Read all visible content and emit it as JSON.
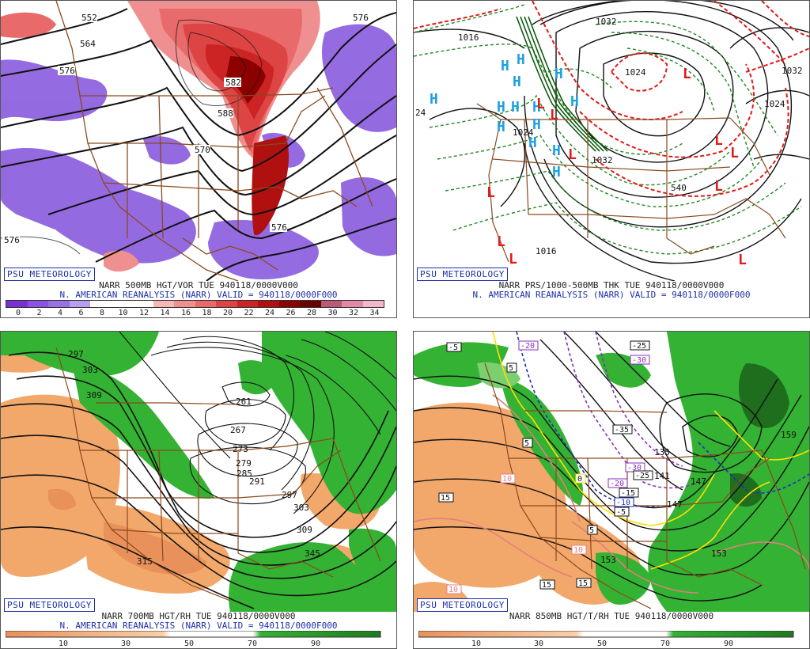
{
  "panels": {
    "tl": {
      "badge": "PSU METEOROLOGY",
      "caption1": "NARR 500MB HGT/VOR TUE 940118/0000V000",
      "caption2": "N. AMERICAN REANALYSIS (NARR) VALID = 940118/0000F000",
      "scale_labels": [
        "0",
        "2",
        "4",
        "6",
        "8",
        "10",
        "12",
        "14",
        "16",
        "18",
        "20",
        "22",
        "24",
        "26",
        "28",
        "30",
        "32",
        "34"
      ],
      "scale_colors": [
        "#7b2fd8",
        "#8a52e2",
        "#9a70e6",
        "#b79ff0",
        "#ffffff",
        "#ffffff",
        "#ffffff",
        "#f7b7b7",
        "#f08f8f",
        "#e86a6a",
        "#dd4545",
        "#cc2424",
        "#b01010",
        "#8c0000",
        "#6b0000",
        "#bb5a77",
        "#e28aa5",
        "#f5b7cb"
      ],
      "contour_labels": [
        "552",
        "564",
        "576",
        "576",
        "582",
        "588",
        "570",
        "576",
        "576"
      ]
    },
    "tr": {
      "badge": "PSU METEOROLOGY",
      "caption1": "NARR PRS/1000-500MB THK TUE 940118/0000V000",
      "caption2": "N. AMERICAN REANALYSIS (NARR) VALID = 940118/0000F000",
      "contour_labels": [
        "1016",
        "1032",
        "1024",
        "1032",
        "1024",
        "1024",
        "1032",
        "1016",
        "24",
        "540"
      ],
      "high_symbol": "H",
      "low_symbol": "L"
    },
    "bl": {
      "badge": "PSU METEOROLOGY",
      "caption1": "NARR 700MB HGT/RH TUE 940118/0000V000",
      "caption2": "N. AMERICAN REANALYSIS (NARR) VALID = 940118/0000F000",
      "scale_labels": [
        "10",
        "30",
        "50",
        "70",
        "90"
      ],
      "contour_labels": [
        "297",
        "303",
        "309",
        "261",
        "267",
        "273",
        "279",
        "285",
        "291",
        "297",
        "303",
        "309",
        "315",
        "345"
      ]
    },
    "br": {
      "badge": "PSU METEOROLOGY",
      "caption1": "NARR 850MB HGT/T/RH TUE 940118/0000V000",
      "caption2": "",
      "scale_labels": [
        "10",
        "30",
        "50",
        "70",
        "90"
      ],
      "contour_labels": [
        "147",
        "135",
        "141",
        "147",
        "153",
        "159",
        "153",
        "153"
      ],
      "temp_labels": [
        "-5",
        "-20",
        "-25",
        "-30",
        "-35",
        "-30",
        "-20",
        "-25",
        "-15",
        "-10",
        "-5",
        "5",
        "5",
        "10",
        "10",
        "15",
        "15",
        "15",
        "10",
        "5",
        "0"
      ]
    }
  },
  "colors": {
    "purple_vor": "#8f63e0",
    "red_vor": "#dd3434",
    "rh_dry": "#f3a86b",
    "rh_moist": "#33b233",
    "thickness_green": "#1f8a1f",
    "thickness_red": "#e01b1b",
    "high_blue": "#1da0e0",
    "badge_blue": "#1b2fa8",
    "border_brown": "#8a4a1f"
  }
}
